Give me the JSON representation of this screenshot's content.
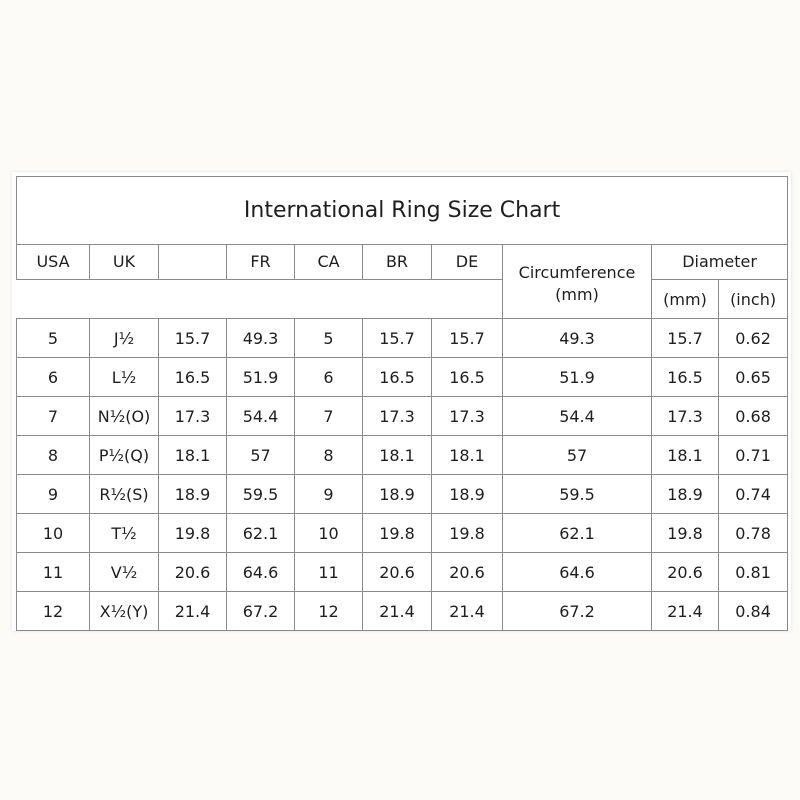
{
  "title": "International Ring Size Chart",
  "headers": {
    "usa": "USA",
    "uk": "UK",
    "blank": "",
    "fr": "FR",
    "ca": "CA",
    "br": "BR",
    "de": "DE",
    "circumference": "Circumference",
    "circumference_unit": "(mm)",
    "diameter": "Diameter",
    "diameter_mm": "(mm)",
    "diameter_inch": "(inch)"
  },
  "rows": [
    [
      "5",
      "J½",
      "15.7",
      "49.3",
      "5",
      "15.7",
      "15.7",
      "49.3",
      "15.7",
      "0.62"
    ],
    [
      "6",
      "L½",
      "16.5",
      "51.9",
      "6",
      "16.5",
      "16.5",
      "51.9",
      "16.5",
      "0.65"
    ],
    [
      "7",
      "N½(O)",
      "17.3",
      "54.4",
      "7",
      "17.3",
      "17.3",
      "54.4",
      "17.3",
      "0.68"
    ],
    [
      "8",
      "P½(Q)",
      "18.1",
      "57",
      "8",
      "18.1",
      "18.1",
      "57",
      "18.1",
      "0.71"
    ],
    [
      "9",
      "R½(S)",
      "18.9",
      "59.5",
      "9",
      "18.9",
      "18.9",
      "59.5",
      "18.9",
      "0.74"
    ],
    [
      "10",
      "T½",
      "19.8",
      "62.1",
      "10",
      "19.8",
      "19.8",
      "62.1",
      "19.8",
      "0.78"
    ],
    [
      "11",
      "V½",
      "20.6",
      "64.6",
      "11",
      "20.6",
      "20.6",
      "64.6",
      "20.6",
      "0.81"
    ],
    [
      "12",
      "X½(Y)",
      "21.4",
      "67.2",
      "12",
      "21.4",
      "21.4",
      "67.2",
      "21.4",
      "0.84"
    ]
  ]
}
